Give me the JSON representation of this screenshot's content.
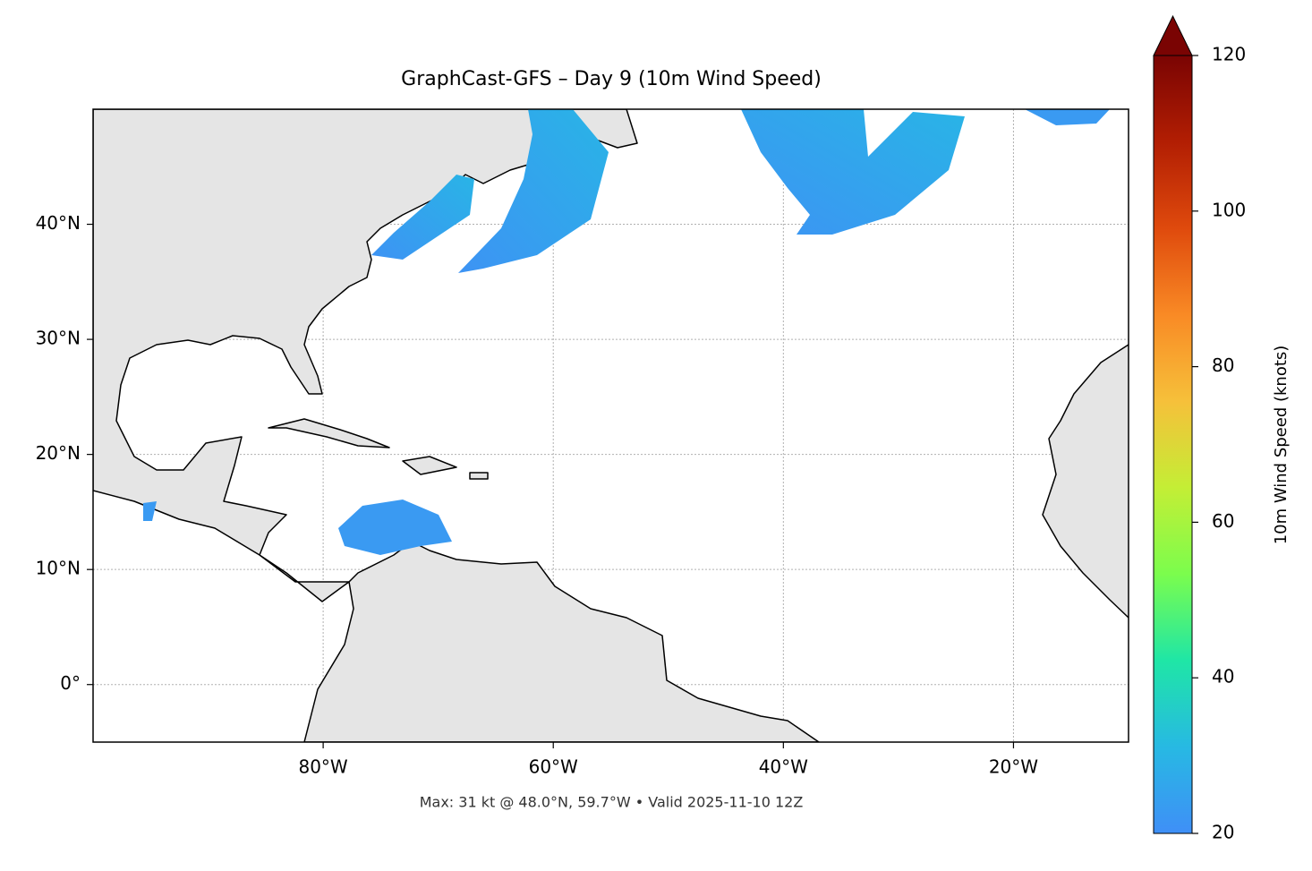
{
  "chart_data": {
    "type": "map",
    "title": "GraphCast-GFS – Day 9 (10m Wind Speed)",
    "footer": "Max: 31 kt @ 48.0°N, 59.7°W • Valid 2025-11-10 12Z",
    "xlim": [
      -100,
      -10
    ],
    "ylim": [
      -5,
      50
    ],
    "xticks": [
      {
        "value": -80,
        "label": "80°W"
      },
      {
        "value": -60,
        "label": "60°W"
      },
      {
        "value": -40,
        "label": "40°W"
      },
      {
        "value": -20,
        "label": "20°W"
      }
    ],
    "yticks": [
      {
        "value": 0,
        "label": "0°"
      },
      {
        "value": 10,
        "label": "10°N"
      },
      {
        "value": 20,
        "label": "20°N"
      },
      {
        "value": 30,
        "label": "30°N"
      },
      {
        "value": 40,
        "label": "40°N"
      }
    ],
    "grid": true,
    "colorbar": {
      "label": "10m Wind Speed (knots)",
      "lim": [
        20,
        120
      ],
      "ticks": [
        20,
        40,
        60,
        80,
        100,
        120
      ],
      "colors": [
        "#3f8ff7",
        "#27b9e3",
        "#1fe6a6",
        "#7bfd4d",
        "#c4ee35",
        "#f6c03a",
        "#f98a25",
        "#df4a0d",
        "#b21e03",
        "#7a0403"
      ]
    }
  }
}
